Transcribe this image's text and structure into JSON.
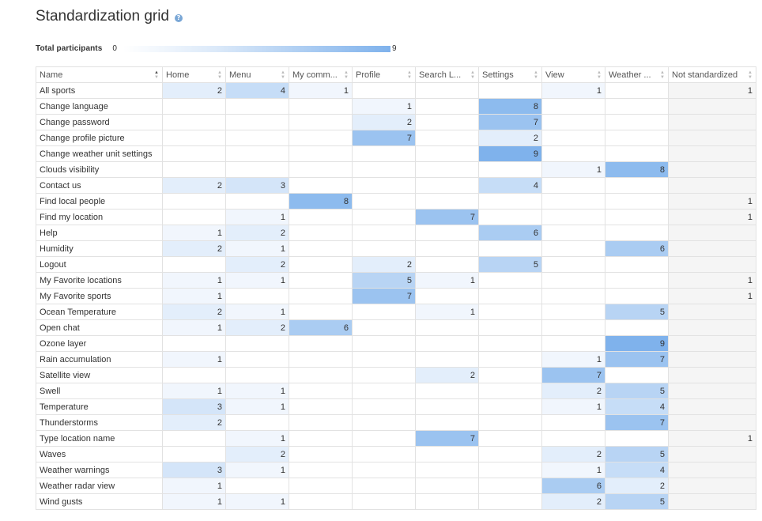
{
  "title": "Standardization grid",
  "help_icon": "?",
  "legend": {
    "label": "Total participants",
    "min": "0",
    "max": "9"
  },
  "colors": {
    "low": "#ffffff",
    "high": "#7fb2ec",
    "not_standardized_bg": "#f5f5f5"
  },
  "table": {
    "columns": [
      "Name",
      "Home",
      "Menu",
      "My comm...",
      "Profile",
      "Search L...",
      "Settings",
      "View",
      "Weather ...",
      "Not standardized"
    ],
    "rows": [
      {
        "name": "All sports",
        "values": [
          2,
          4,
          1,
          null,
          null,
          null,
          1,
          null,
          1
        ]
      },
      {
        "name": "Change language",
        "values": [
          null,
          null,
          null,
          1,
          null,
          8,
          null,
          null,
          null
        ]
      },
      {
        "name": "Change password",
        "values": [
          null,
          null,
          null,
          2,
          null,
          7,
          null,
          null,
          null
        ]
      },
      {
        "name": "Change profile picture",
        "values": [
          null,
          null,
          null,
          7,
          null,
          2,
          null,
          null,
          null
        ]
      },
      {
        "name": "Change weather unit settings",
        "values": [
          null,
          null,
          null,
          null,
          null,
          9,
          null,
          null,
          null
        ]
      },
      {
        "name": "Clouds visibility",
        "values": [
          null,
          null,
          null,
          null,
          null,
          null,
          1,
          8,
          null
        ]
      },
      {
        "name": "Contact us",
        "values": [
          2,
          3,
          null,
          null,
          null,
          4,
          null,
          null,
          null
        ]
      },
      {
        "name": "Find local people",
        "values": [
          null,
          null,
          8,
          null,
          null,
          null,
          null,
          null,
          1
        ]
      },
      {
        "name": "Find my location",
        "values": [
          null,
          1,
          null,
          null,
          7,
          null,
          null,
          null,
          1
        ]
      },
      {
        "name": "Help",
        "values": [
          1,
          2,
          null,
          null,
          null,
          6,
          null,
          null,
          null
        ]
      },
      {
        "name": "Humidity",
        "values": [
          2,
          1,
          null,
          null,
          null,
          null,
          null,
          6,
          null
        ]
      },
      {
        "name": "Logout",
        "values": [
          null,
          2,
          null,
          2,
          null,
          5,
          null,
          null,
          null
        ]
      },
      {
        "name": "My Favorite locations",
        "values": [
          1,
          1,
          null,
          5,
          1,
          null,
          null,
          null,
          1
        ]
      },
      {
        "name": "My Favorite sports",
        "values": [
          1,
          null,
          null,
          7,
          null,
          null,
          null,
          null,
          1
        ]
      },
      {
        "name": "Ocean Temperature",
        "values": [
          2,
          1,
          null,
          null,
          1,
          null,
          null,
          5,
          null
        ]
      },
      {
        "name": "Open chat",
        "values": [
          1,
          2,
          6,
          null,
          null,
          null,
          null,
          null,
          null
        ]
      },
      {
        "name": "Ozone layer",
        "values": [
          null,
          null,
          null,
          null,
          null,
          null,
          null,
          9,
          null
        ]
      },
      {
        "name": "Rain accumulation",
        "values": [
          1,
          null,
          null,
          null,
          null,
          null,
          1,
          7,
          null
        ]
      },
      {
        "name": "Satellite view",
        "values": [
          null,
          null,
          null,
          null,
          2,
          null,
          7,
          null,
          null
        ]
      },
      {
        "name": "Swell",
        "values": [
          1,
          1,
          null,
          null,
          null,
          null,
          2,
          5,
          null
        ]
      },
      {
        "name": "Temperature",
        "values": [
          3,
          1,
          null,
          null,
          null,
          null,
          1,
          4,
          null
        ]
      },
      {
        "name": "Thunderstorms",
        "values": [
          2,
          null,
          null,
          null,
          null,
          null,
          null,
          7,
          null
        ]
      },
      {
        "name": "Type location name",
        "values": [
          null,
          1,
          null,
          null,
          7,
          null,
          null,
          null,
          1
        ]
      },
      {
        "name": "Waves",
        "values": [
          null,
          2,
          null,
          null,
          null,
          null,
          2,
          5,
          null
        ]
      },
      {
        "name": "Weather warnings",
        "values": [
          3,
          1,
          null,
          null,
          null,
          null,
          1,
          4,
          null
        ]
      },
      {
        "name": "Weather radar view",
        "values": [
          1,
          null,
          null,
          null,
          null,
          null,
          6,
          2,
          null
        ]
      },
      {
        "name": "Wind gusts",
        "values": [
          1,
          1,
          null,
          null,
          null,
          null,
          2,
          5,
          null
        ]
      }
    ]
  }
}
